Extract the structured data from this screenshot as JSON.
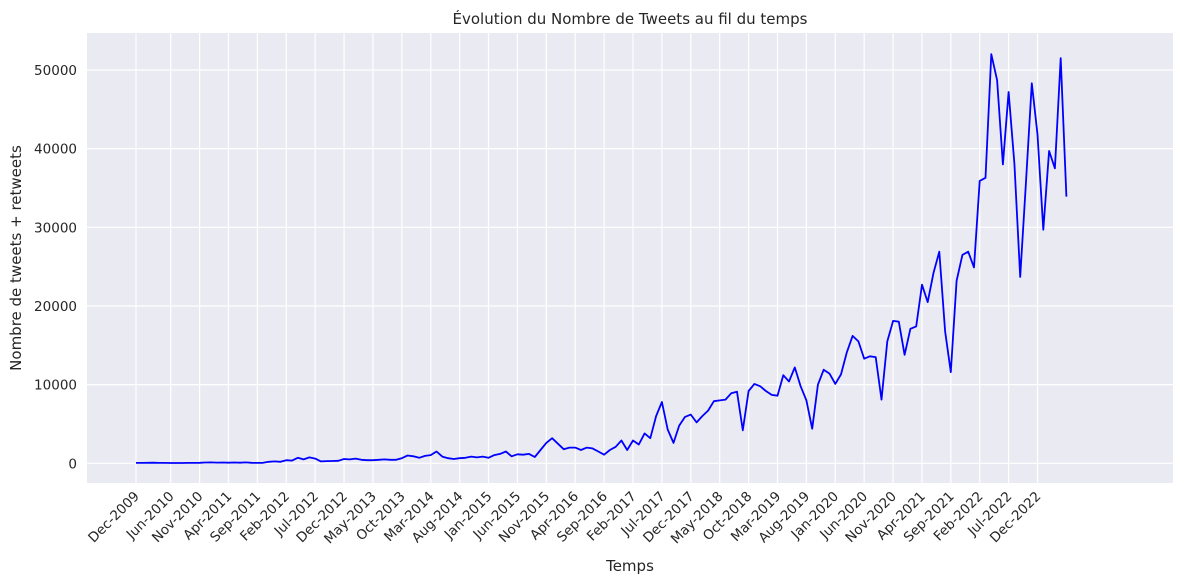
{
  "chart_data": {
    "type": "line",
    "title": "Évolution du Nombre de Tweets au fil du temps",
    "xlabel": "Temps",
    "ylabel": "Nombre de tweets + retweets",
    "ylim": [
      -2500,
      54700
    ],
    "yticks": [
      0,
      10000,
      20000,
      30000,
      40000,
      50000
    ],
    "xlim": [
      "Dec-2009",
      "Apr-2024"
    ],
    "grid": true,
    "legend": "none",
    "colors": {
      "line": "#0000ff",
      "plot_bg": "#eaeaf2",
      "grid": "#ffffff"
    },
    "xtick_labels": [
      "Dec-2009",
      "Jun-2010",
      "Nov-2010",
      "Apr-2011",
      "Sep-2011",
      "Feb-2012",
      "Jul-2012",
      "Dec-2012",
      "May-2013",
      "Oct-2013",
      "Mar-2014",
      "Aug-2014",
      "Jan-2015",
      "Jun-2015",
      "Nov-2015",
      "Apr-2016",
      "Sep-2016",
      "Feb-2017",
      "Jul-2017",
      "Dec-2017",
      "May-2018",
      "Oct-2018",
      "Mar-2019",
      "Aug-2019",
      "Jan-2020",
      "Jun-2020",
      "Nov-2020",
      "Apr-2021",
      "Sep-2021",
      "Feb-2022",
      "Jul-2022",
      "Dec-2022"
    ],
    "series": [
      {
        "values": [
          [
            "Dec-2009",
            50
          ],
          [
            "Jan-2010",
            60
          ],
          [
            "Feb-2010",
            70
          ],
          [
            "Mar-2010",
            80
          ],
          [
            "Apr-2010",
            60
          ],
          [
            "May-2010",
            50
          ],
          [
            "Jun-2010",
            40
          ],
          [
            "Jul-2010",
            40
          ],
          [
            "Aug-2010",
            40
          ],
          [
            "Sep-2010",
            50
          ],
          [
            "Oct-2010",
            60
          ],
          [
            "Nov-2010",
            70
          ],
          [
            "Dec-2010",
            100
          ],
          [
            "Jan-2011",
            120
          ],
          [
            "Feb-2011",
            90
          ],
          [
            "Mar-2011",
            110
          ],
          [
            "Apr-2011",
            80
          ],
          [
            "May-2011",
            100
          ],
          [
            "Jun-2011",
            80
          ],
          [
            "Jul-2011",
            120
          ],
          [
            "Aug-2011",
            70
          ],
          [
            "Sep-2011",
            60
          ],
          [
            "Oct-2011",
            70
          ],
          [
            "Nov-2011",
            200
          ],
          [
            "Dec-2011",
            250
          ],
          [
            "Jan-2012",
            200
          ],
          [
            "Feb-2012",
            400
          ],
          [
            "Mar-2012",
            350
          ],
          [
            "Apr-2012",
            700
          ],
          [
            "May-2012",
            500
          ],
          [
            "Jun-2012",
            750
          ],
          [
            "Jul-2012",
            600
          ],
          [
            "Aug-2012",
            250
          ],
          [
            "Sep-2012",
            280
          ],
          [
            "Oct-2012",
            300
          ],
          [
            "Nov-2012",
            320
          ],
          [
            "Dec-2012",
            550
          ],
          [
            "Jan-2013",
            500
          ],
          [
            "Feb-2013",
            600
          ],
          [
            "Mar-2013",
            450
          ],
          [
            "Apr-2013",
            400
          ],
          [
            "May-2013",
            400
          ],
          [
            "Jun-2013",
            450
          ],
          [
            "Jul-2013",
            500
          ],
          [
            "Aug-2013",
            450
          ],
          [
            "Sep-2013",
            450
          ],
          [
            "Oct-2013",
            650
          ],
          [
            "Nov-2013",
            1000
          ],
          [
            "Dec-2013",
            900
          ],
          [
            "Jan-2014",
            700
          ],
          [
            "Feb-2014",
            950
          ],
          [
            "Mar-2014",
            1050
          ],
          [
            "Apr-2014",
            1500
          ],
          [
            "May-2014",
            850
          ],
          [
            "Jun-2014",
            650
          ],
          [
            "Jul-2014",
            550
          ],
          [
            "Aug-2014",
            650
          ],
          [
            "Sep-2014",
            700
          ],
          [
            "Oct-2014",
            850
          ],
          [
            "Nov-2014",
            750
          ],
          [
            "Dec-2014",
            850
          ],
          [
            "Jan-2015",
            700
          ],
          [
            "Feb-2015",
            1050
          ],
          [
            "Mar-2015",
            1200
          ],
          [
            "Apr-2015",
            1500
          ],
          [
            "May-2015",
            900
          ],
          [
            "Jun-2015",
            1150
          ],
          [
            "Jul-2015",
            1100
          ],
          [
            "Aug-2015",
            1200
          ],
          [
            "Sep-2015",
            800
          ],
          [
            "Oct-2015",
            1700
          ],
          [
            "Nov-2015",
            2600
          ],
          [
            "Dec-2015",
            3200
          ],
          [
            "Jan-2016",
            2500
          ],
          [
            "Feb-2016",
            1800
          ],
          [
            "Mar-2016",
            2000
          ],
          [
            "Apr-2016",
            2000
          ],
          [
            "May-2016",
            1700
          ],
          [
            "Jun-2016",
            2000
          ],
          [
            "Jul-2016",
            1900
          ],
          [
            "Aug-2016",
            1500
          ],
          [
            "Sep-2016",
            1100
          ],
          [
            "Oct-2016",
            1700
          ],
          [
            "Nov-2016",
            2100
          ],
          [
            "Dec-2016",
            2900
          ],
          [
            "Jan-2017",
            1700
          ],
          [
            "Feb-2017",
            2900
          ],
          [
            "Mar-2017",
            2400
          ],
          [
            "Apr-2017",
            3800
          ],
          [
            "May-2017",
            3200
          ],
          [
            "Jun-2017",
            6000
          ],
          [
            "Jul-2017",
            7800
          ],
          [
            "Aug-2017",
            4300
          ],
          [
            "Sep-2017",
            2600
          ],
          [
            "Oct-2017",
            4800
          ],
          [
            "Nov-2017",
            5900
          ],
          [
            "Dec-2017",
            6200
          ],
          [
            "Jan-2018",
            5200
          ],
          [
            "Feb-2018",
            6000
          ],
          [
            "Mar-2018",
            6700
          ],
          [
            "Apr-2018",
            7900
          ],
          [
            "May-2018",
            8000
          ],
          [
            "Jun-2018",
            8100
          ],
          [
            "Jul-2018",
            8900
          ],
          [
            "Aug-2018",
            9100
          ],
          [
            "Sep-2018",
            4200
          ],
          [
            "Oct-2018",
            9200
          ],
          [
            "Nov-2018",
            10100
          ],
          [
            "Dec-2018",
            9800
          ],
          [
            "Jan-2019",
            9200
          ],
          [
            "Feb-2019",
            8700
          ],
          [
            "Mar-2019",
            8600
          ],
          [
            "Apr-2019",
            11200
          ],
          [
            "May-2019",
            10400
          ],
          [
            "Jun-2019",
            12200
          ],
          [
            "Jul-2019",
            9800
          ],
          [
            "Aug-2019",
            8000
          ],
          [
            "Sep-2019",
            4400
          ],
          [
            "Oct-2019",
            10000
          ],
          [
            "Nov-2019",
            11900
          ],
          [
            "Dec-2019",
            11400
          ],
          [
            "Jan-2020",
            10100
          ],
          [
            "Feb-2020",
            11300
          ],
          [
            "Mar-2020",
            14100
          ],
          [
            "Apr-2020",
            16200
          ],
          [
            "May-2020",
            15500
          ],
          [
            "Jun-2020",
            13300
          ],
          [
            "Jul-2020",
            13600
          ],
          [
            "Aug-2020",
            13500
          ],
          [
            "Sep-2020",
            8100
          ],
          [
            "Oct-2020",
            15500
          ],
          [
            "Nov-2020",
            18100
          ],
          [
            "Dec-2020",
            18000
          ],
          [
            "Jan-2021",
            13800
          ],
          [
            "Feb-2021",
            17100
          ],
          [
            "Mar-2021",
            17400
          ],
          [
            "Apr-2021",
            22700
          ],
          [
            "May-2021",
            20500
          ],
          [
            "Jun-2021",
            24200
          ],
          [
            "Jul-2021",
            26900
          ],
          [
            "Aug-2021",
            16800
          ],
          [
            "Sep-2021",
            11600
          ],
          [
            "Oct-2021",
            23200
          ],
          [
            "Nov-2021",
            26500
          ],
          [
            "Dec-2021",
            26900
          ],
          [
            "Jan-2022",
            24900
          ],
          [
            "Feb-2022",
            35900
          ],
          [
            "Mar-2022",
            36300
          ],
          [
            "Apr-2022",
            52000
          ],
          [
            "May-2022",
            48700
          ],
          [
            "Jun-2022",
            38000
          ],
          [
            "Jul-2022",
            47200
          ],
          [
            "Aug-2022",
            38100
          ],
          [
            "Sep-2022",
            23700
          ],
          [
            "Oct-2022",
            35800
          ],
          [
            "Nov-2022",
            48300
          ],
          [
            "Dec-2022",
            41800
          ],
          [
            "Jan-2023",
            29700
          ],
          [
            "Feb-2023",
            39700
          ],
          [
            "Mar-2023",
            37500
          ],
          [
            "Apr-2023",
            51500
          ],
          [
            "May-2023",
            33900
          ]
        ]
      }
    ]
  }
}
